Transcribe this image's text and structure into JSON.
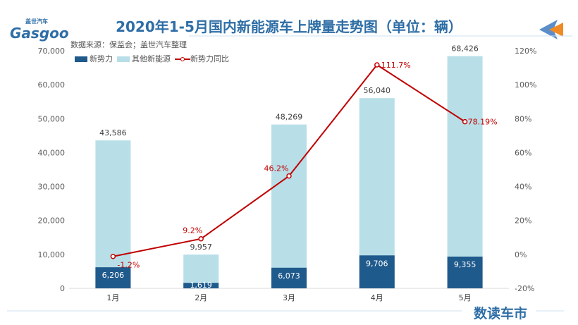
{
  "logo": {
    "text": "Gasgoo",
    "cn": "盖世汽车"
  },
  "brand": "数读车市",
  "chart_data": {
    "type": "bar",
    "title": "2020年1-5月国内新能源车上牌量走势图（单位：辆）",
    "subtitle": "数据来源：保监会；盖世汽车整理",
    "categories": [
      "1月",
      "2月",
      "3月",
      "4月",
      "5月"
    ],
    "series": [
      {
        "name": "新势力",
        "type": "bar",
        "color": "#1f5a8c",
        "values": [
          6206,
          1619,
          6073,
          9706,
          9355
        ],
        "labels": [
          "6,206",
          "1,619",
          "6,073",
          "9,706",
          "9,355"
        ]
      },
      {
        "name": "其他新能源",
        "type": "bar",
        "color": "#b8dfe8",
        "values": [
          43586,
          9957,
          48269,
          56040,
          68426
        ],
        "labels": [
          "43,586",
          "9,957",
          "48,269",
          "56,040",
          "68,426"
        ]
      },
      {
        "name": "新势力同比",
        "type": "line",
        "axis": "right",
        "color": "#c00000",
        "values": [
          -1.2,
          9.2,
          46.2,
          111.7,
          78.19
        ],
        "labels": [
          "-1.2%",
          "9.2%",
          "46.2%",
          "111.7%",
          "78.19%"
        ]
      }
    ],
    "ylim": [
      0,
      70000
    ],
    "yticks": [
      "0",
      "10,000",
      "20,000",
      "30,000",
      "40,000",
      "50,000",
      "60,000",
      "70,000"
    ],
    "y2lim": [
      -20,
      120
    ],
    "y2ticks": [
      "-20%",
      "0%",
      "20%",
      "40%",
      "60%",
      "80%",
      "100%",
      "120%"
    ],
    "legend": "top-left",
    "grid": false
  }
}
